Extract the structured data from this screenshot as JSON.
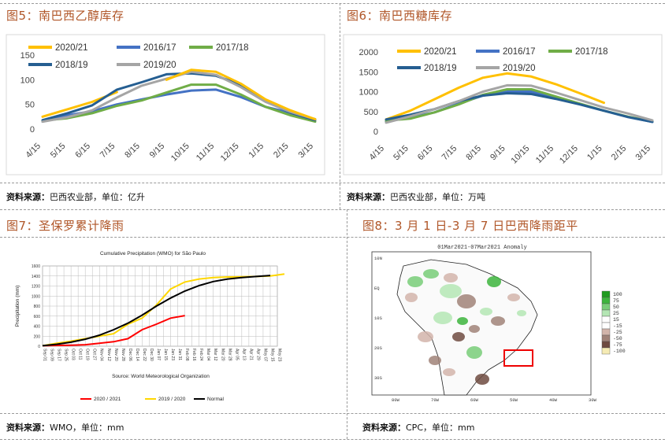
{
  "panels": {
    "p5": {
      "title": "图5：南巴西乙醇库存",
      "source_bold": "资料来源：",
      "source_text": "巴西农业部，单位：亿升"
    },
    "p6": {
      "title": "图6：南巴西糖库存",
      "source_bold": "资料来源：",
      "source_text": "巴西农业部，单位：万吨"
    },
    "p7": {
      "title": "图7：圣保罗累计降雨",
      "source_bold": "资料来源：",
      "source_text": "WMO，单位：mm"
    },
    "p8": {
      "title": "图8：3 月 1 日-3 月 7 日巴西降雨距平",
      "source_bold": "资料来源：",
      "source_text": "CPC，单位：mm"
    }
  },
  "chart_data": [
    {
      "type": "line",
      "panel": "p5",
      "categories": [
        "4/15",
        "5/15",
        "6/15",
        "7/15",
        "8/15",
        "9/15",
        "10/15",
        "11/15",
        "12/15",
        "1/15",
        "2/15",
        "3/15"
      ],
      "ylim": [
        0,
        150
      ],
      "yticks": [
        0,
        50,
        100,
        150
      ],
      "series": [
        {
          "name": "2020/21",
          "color": "#FFC000",
          "values": [
            25,
            40,
            55,
            75,
            null,
            null,
            null,
            null,
            null,
            null,
            null,
            null
          ]
        },
        {
          "name": "2016/17",
          "color": "#4472C4",
          "values": [
            15,
            28,
            36,
            50,
            60,
            70,
            78,
            80,
            65,
            45,
            33,
            20
          ]
        },
        {
          "name": "2017/18",
          "color": "#70AD47",
          "values": [
            17,
            22,
            32,
            47,
            58,
            74,
            90,
            90,
            70,
            45,
            28,
            15
          ]
        },
        {
          "name": "2018/19",
          "color": "#255E91",
          "values": [
            18,
            32,
            48,
            80,
            95,
            111,
            113,
            108,
            90,
            58,
            33,
            18
          ]
        },
        {
          "name": "2019/20",
          "color": "#A5A5A5",
          "values": [
            15,
            24,
            38,
            64,
            88,
            102,
            116,
            110,
            85,
            55,
            35,
            20
          ]
        },
        {
          "name": "2020/21_tail",
          "color": "#FFC000",
          "values": [
            null,
            null,
            null,
            null,
            null,
            100,
            120,
            116,
            92,
            60,
            38,
            20
          ]
        }
      ]
    },
    {
      "type": "line",
      "panel": "p6",
      "categories": [
        "4/15",
        "5/15",
        "6/15",
        "7/15",
        "8/15",
        "9/15",
        "10/15",
        "11/15",
        "12/15",
        "1/15",
        "2/15",
        "3/15"
      ],
      "ylim": [
        0,
        2000
      ],
      "yticks": [
        0,
        500,
        1000,
        1500,
        2000
      ],
      "series": [
        {
          "name": "2020/21",
          "color": "#FFC000",
          "values": [
            300,
            520,
            810,
            1100,
            1350,
            1460,
            1380,
            1190,
            960,
            720,
            null,
            null
          ]
        },
        {
          "name": "2016/17",
          "color": "#4472C4",
          "values": [
            250,
            350,
            480,
            700,
            900,
            1000,
            1000,
            850,
            690,
            520,
            360,
            240
          ]
        },
        {
          "name": "2017/18",
          "color": "#70AD47",
          "values": [
            270,
            320,
            480,
            680,
            920,
            1060,
            1060,
            880,
            700,
            520,
            370,
            250
          ]
        },
        {
          "name": "2018/19",
          "color": "#255E91",
          "values": [
            300,
            420,
            560,
            760,
            900,
            960,
            940,
            820,
            680,
            520,
            360,
            240
          ]
        },
        {
          "name": "2019/20",
          "color": "#A5A5A5",
          "values": [
            220,
            380,
            560,
            760,
            1000,
            1160,
            1150,
            980,
            790,
            600,
            450,
            280
          ]
        }
      ]
    },
    {
      "type": "line",
      "panel": "p7",
      "title": "Cumulative Precipitation (WMO) for São Paulo",
      "ylabel": "Precipitation (mm)",
      "note": "Source: World Meteorological Organization",
      "ylim": [
        0,
        1600
      ],
      "yticks": [
        0,
        200,
        400,
        600,
        800,
        1000,
        1200,
        1400,
        1600
      ],
      "xticks": [
        "Sep 01",
        "Sep 09",
        "Sep 17",
        "Sep 25",
        "Oct 03",
        "Oct 11",
        "Oct 19",
        "Oct 27",
        "Nov 04",
        "Nov 12",
        "Nov 20",
        "Nov 28",
        "Dec 06",
        "Dec 14",
        "Dec 22",
        "Dec 30",
        "Jan 07",
        "Jan 15",
        "Jan 23",
        "Jan 31",
        "Feb 08",
        "Feb 16",
        "Feb 24",
        "Mar 04",
        "Mar 12",
        "Mar 20",
        "Mar 28",
        "Apr 05",
        "Apr 13",
        "Apr 21",
        "Apr 29",
        "May 07",
        "May 15",
        "May 23"
      ],
      "series": [
        {
          "name": "2020 / 2021",
          "color": "#FF0000",
          "x": [
            0,
            2,
            4,
            6,
            8,
            10,
            12,
            14,
            16,
            18,
            20
          ],
          "values": [
            10,
            15,
            20,
            30,
            60,
            90,
            150,
            330,
            440,
            560,
            610
          ]
        },
        {
          "name": "2019 / 2020",
          "color": "#FFD700",
          "x": [
            0,
            2,
            4,
            6,
            8,
            10,
            12,
            14,
            16,
            18,
            20,
            22,
            24,
            26,
            28,
            30,
            32,
            34
          ],
          "values": [
            10,
            60,
            100,
            150,
            200,
            250,
            440,
            560,
            820,
            1140,
            1280,
            1340,
            1370,
            1380,
            1385,
            1390,
            1400,
            1440
          ]
        },
        {
          "name": "Normal",
          "color": "#000000",
          "x": [
            0,
            2,
            4,
            6,
            8,
            10,
            12,
            14,
            16,
            18,
            20,
            22,
            24,
            26,
            28,
            30,
            32
          ],
          "values": [
            10,
            40,
            80,
            140,
            220,
            330,
            460,
            620,
            800,
            960,
            1100,
            1210,
            1290,
            1340,
            1370,
            1390,
            1410
          ]
        }
      ]
    },
    {
      "type": "heatmap",
      "panel": "p8",
      "title": "01Mar2021-07Mar2021 Anomaly",
      "lat_labels": [
        "10N",
        "EQ",
        "10S",
        "20S",
        "30S"
      ],
      "lon_labels": [
        "80W",
        "70W",
        "60W",
        "50W",
        "40W",
        "30W"
      ],
      "legend": [
        {
          "label": "100",
          "color": "#1E9B1E"
        },
        {
          "label": "75",
          "color": "#3CB43C"
        },
        {
          "label": "50",
          "color": "#78CD78"
        },
        {
          "label": "25",
          "color": "#B4E6B4"
        },
        {
          "label": "15",
          "color": "#FFFFFF"
        },
        {
          "label": "-15",
          "color": "#FFFFFF"
        },
        {
          "label": "-25",
          "color": "#D2B4AA"
        },
        {
          "label": "-50",
          "color": "#A08278"
        },
        {
          "label": "-75",
          "color": "#6E4B41"
        },
        {
          "label": "-100",
          "color": "#F5EBB4"
        }
      ]
    }
  ]
}
